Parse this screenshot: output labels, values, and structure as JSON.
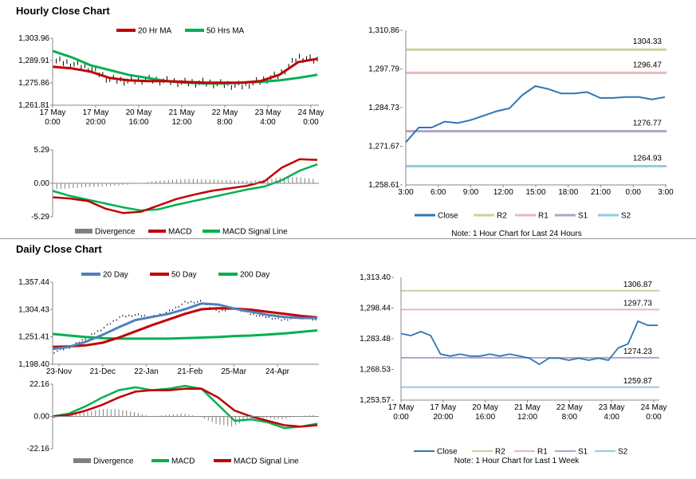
{
  "sections": [
    {
      "title": "Hourly Close Chart"
    },
    {
      "title": "Daily Close Chart"
    }
  ],
  "colors": {
    "close": "#2e75b6",
    "ma20": "#c00000",
    "ma50": "#00b050",
    "ma20_daily": "#4f81bd",
    "ma50_daily": "#c00000",
    "ma200_daily": "#00b050",
    "r2": "#c3d69b",
    "r1": "#e6b9b8",
    "s1": "#b3a2c7",
    "s2": "#92cddc",
    "divergence": "#808080",
    "axis": "#888888"
  },
  "chart_data": [
    {
      "id": "hourly_price",
      "type": "line",
      "xlabels": [
        "17 May\n0:00",
        "17 May\n20:00",
        "20 May\n16:00",
        "21 May\n12:00",
        "22 May\n8:00",
        "23 May\n4:00",
        "24 May\n0:00"
      ],
      "yticks": [
        "1,303.96",
        "1,289.91",
        "1,275.86",
        "1,261.81"
      ],
      "ylim": [
        1261.81,
        1303.96
      ],
      "legend": [
        "20 Hr MA",
        "50 Hrs MA"
      ],
      "series": [
        {
          "name": "20 Hr MA",
          "values": [
            1286,
            1285,
            1283,
            1279,
            1277.5,
            1277,
            1277,
            1276.5,
            1276,
            1276,
            1276,
            1277,
            1281,
            1289,
            1291
          ]
        },
        {
          "name": "50 Hrs MA",
          "values": [
            1296,
            1292,
            1287,
            1284,
            1281,
            1279,
            1277,
            1276,
            1275.5,
            1275.5,
            1276,
            1276.5,
            1277.5,
            1279,
            1281
          ]
        }
      ],
      "close": [
        1290,
        1288,
        1285,
        1278,
        1277,
        1278,
        1277,
        1276,
        1276,
        1275,
        1274,
        1277,
        1281,
        1292,
        1290
      ]
    },
    {
      "id": "hourly_macd",
      "type": "line",
      "yticks": [
        "5.29",
        "0.00",
        "-5.29"
      ],
      "ylim": [
        -5.29,
        5.29
      ],
      "legend": [
        "Divergence",
        "MACD",
        "MACD Signal Line"
      ],
      "series": [
        {
          "name": "MACD",
          "values": [
            -2.2,
            -2.4,
            -2.8,
            -4,
            -4.7,
            -4.5,
            -3.5,
            -2.5,
            -1.8,
            -1.2,
            -0.8,
            -0.4,
            0.3,
            2.5,
            3.8,
            3.7
          ]
        },
        {
          "name": "MACD Signal Line",
          "values": [
            -1.2,
            -2,
            -2.6,
            -3.2,
            -3.8,
            -4.3,
            -4.1,
            -3.4,
            -2.8,
            -2.2,
            -1.6,
            -1,
            -0.5,
            0.5,
            2,
            3
          ]
        }
      ],
      "divergence": [
        -1,
        -0.8,
        -0.6,
        -0.5,
        -0.3,
        0,
        0.4,
        0.6,
        0.7,
        0.6,
        0.5,
        0.4,
        0.5,
        0.9,
        1,
        0.7
      ]
    },
    {
      "id": "hourly_pivots",
      "type": "line",
      "xlabels": [
        "3:00",
        "6:00",
        "9:00",
        "12:00",
        "15:00",
        "18:00",
        "21:00",
        "0:00",
        "3:00"
      ],
      "yticks": [
        "1,310.86",
        "1,297.79",
        "1,284.73",
        "1,271.67",
        "1,258.61"
      ],
      "ylim": [
        1258.61,
        1310.86
      ],
      "levels": [
        {
          "name": "R2",
          "value": 1304.33,
          "label": "1304.33"
        },
        {
          "name": "R1",
          "value": 1296.47,
          "label": "1296.47"
        },
        {
          "name": "S1",
          "value": 1276.77,
          "label": "1276.77"
        },
        {
          "name": "S2",
          "value": 1264.93,
          "label": "1264.93"
        }
      ],
      "close": [
        1273,
        1278,
        1278,
        1280,
        1279.5,
        1280.5,
        1282,
        1283.5,
        1284.5,
        1289,
        1292,
        1291,
        1289.5,
        1289.5,
        1290,
        1288,
        1288,
        1288.3,
        1288.3,
        1287.5,
        1288.3
      ],
      "legend": [
        "Close",
        "R2",
        "R1",
        "S1",
        "S2"
      ],
      "note": "Note: 1 Hour Chart for Last 24 Hours"
    },
    {
      "id": "daily_price",
      "type": "line",
      "xlabels": [
        "23-Nov",
        "21-Dec",
        "22-Jan",
        "21-Feb",
        "25-Mar",
        "24-Apr"
      ],
      "yticks": [
        "1,357.44",
        "1,304.43",
        "1,251.41",
        "1,198.40"
      ],
      "ylim": [
        1198.4,
        1357.44
      ],
      "legend": [
        "20 Day",
        "50 Day",
        "200 Day"
      ],
      "series": [
        {
          "name": "20 Day",
          "values": [
            1228,
            1232,
            1242,
            1255,
            1270,
            1284,
            1290,
            1296,
            1305,
            1316,
            1314,
            1306,
            1300,
            1294,
            1290,
            1288,
            1288
          ]
        },
        {
          "name": "50 Day",
          "values": [
            1232,
            1233,
            1235,
            1240,
            1250,
            1262,
            1274,
            1285,
            1296,
            1305,
            1307,
            1306,
            1304,
            1300,
            1296,
            1292,
            1289
          ]
        },
        {
          "name": "200 Day",
          "values": [
            1257,
            1254,
            1251,
            1249,
            1248,
            1248,
            1248,
            1248,
            1249,
            1250,
            1251,
            1253,
            1254,
            1256,
            1258,
            1261,
            1264
          ]
        }
      ],
      "close": [
        1222,
        1232,
        1250,
        1268,
        1290,
        1294,
        1290,
        1300,
        1318,
        1320,
        1300,
        1308,
        1296,
        1290,
        1284,
        1290,
        1284
      ]
    },
    {
      "id": "daily_macd",
      "type": "line",
      "yticks": [
        "22.16",
        "0.00",
        "-22.16"
      ],
      "ylim": [
        -22.16,
        22.16
      ],
      "legend": [
        "Divergence",
        "MACD",
        "MACD Signal Line"
      ],
      "series": [
        {
          "name": "MACD",
          "values": [
            0,
            2,
            7,
            13,
            18,
            20,
            18,
            19,
            21,
            19,
            8,
            -3,
            -2,
            -4,
            -8,
            -7,
            -5
          ]
        },
        {
          "name": "MACD Signal Line",
          "values": [
            0,
            1,
            4,
            8,
            13,
            17,
            18,
            18,
            19,
            19,
            13,
            4,
            0,
            -3,
            -6,
            -7,
            -6
          ]
        }
      ],
      "divergence": [
        0,
        1,
        3,
        5,
        5,
        3,
        0,
        1,
        2,
        0,
        -5,
        -7,
        -2,
        -1,
        -2,
        0,
        1
      ]
    },
    {
      "id": "daily_pivots",
      "type": "line",
      "xlabels": [
        "17 May\n0:00",
        "17 May\n20:00",
        "20 May\n16:00",
        "21 May\n12:00",
        "22 May\n8:00",
        "23 May\n4:00",
        "24 May\n0:00"
      ],
      "yticks": [
        "1,313.40",
        "1,298.44",
        "1,283.48",
        "1,268.53",
        "1,253.57"
      ],
      "ylim": [
        1253.57,
        1313.4
      ],
      "levels": [
        {
          "name": "R2",
          "value": 1306.87,
          "label": "1306.87"
        },
        {
          "name": "R1",
          "value": 1297.73,
          "label": "1297.73"
        },
        {
          "name": "S1",
          "value": 1274.23,
          "label": "1274.23"
        },
        {
          "name": "S2",
          "value": 1259.87,
          "label": "1259.87"
        }
      ],
      "close": [
        1286,
        1285,
        1287,
        1285,
        1276,
        1275,
        1276,
        1275,
        1275,
        1276,
        1275,
        1276,
        1275,
        1274,
        1271,
        1274,
        1274,
        1273,
        1274,
        1273,
        1274,
        1273,
        1279,
        1281,
        1292,
        1290,
        1290
      ],
      "legend": [
        "Close",
        "R2",
        "R1",
        "S1",
        "S2"
      ],
      "note": "Note: 1 Hour Chart for Last 1 Week"
    }
  ]
}
